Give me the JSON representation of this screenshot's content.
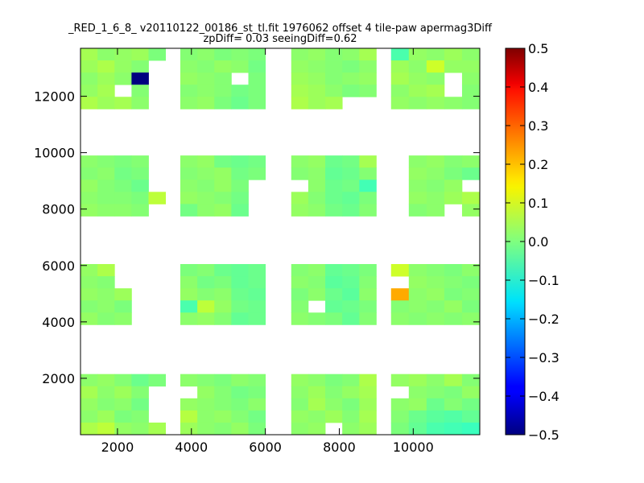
{
  "chart_data": {
    "type": "heatmap",
    "title_lines": [
      "_RED_1_6_8_ v20110122_00186_st_tl.fit 1976062 offset 4 tile-paw apermag3Diff",
      "zpDiff= 0.03 seeingDiff=0.62"
    ],
    "xlim": [
      1000,
      11800
    ],
    "ylim": [
      0,
      13700
    ],
    "cell_width": 510,
    "cell_height": 430,
    "x_ticks": [
      2000,
      4000,
      6000,
      8000,
      10000
    ],
    "x_tick_labels": [
      "2000",
      "4000",
      "6000",
      "8000",
      "10000"
    ],
    "y_ticks": [
      2000,
      4000,
      6000,
      8000,
      10000,
      12000
    ],
    "y_tick_labels": [
      "2000",
      "4000",
      "6000",
      "8000",
      "10000",
      "12000"
    ],
    "colorbar": {
      "colormap": "jet",
      "range": [
        -0.5,
        0.5
      ],
      "ticks": [
        0.5,
        0.4,
        0.3,
        0.2,
        0.1,
        0.0,
        -0.1,
        -0.2,
        -0.3,
        -0.4,
        -0.5
      ],
      "tick_labels": [
        "0.5",
        "0.4",
        "0.3",
        "0.2",
        "0.1",
        "0.0",
        "−0.1",
        "−0.2",
        "−0.3",
        "−0.4",
        "−0.5"
      ]
    },
    "tiles": [
      {
        "x": [
          1000,
          3300
        ],
        "y": [
          0,
          2150
        ],
        "rows": [
          [
            0.02,
            0.03,
            0.01,
            -0.02,
            0.0
          ],
          [
            0.05,
            0.02,
            0.04,
            0.01,
            null
          ],
          [
            0.03,
            0.01,
            0.02,
            -0.01,
            null
          ],
          [
            0.02,
            0.04,
            0.0,
            0.01,
            null
          ],
          [
            0.06,
            0.08,
            0.03,
            0.02,
            0.05
          ]
        ]
      },
      {
        "x": [
          3700,
          6000
        ],
        "y": [
          0,
          2150
        ],
        "rows": [
          [
            0.02,
            0.01,
            0.0,
            0.02,
            0.01
          ],
          [
            null,
            0.03,
            0.01,
            -0.01,
            0.0
          ],
          [
            0.03,
            0.02,
            0.01,
            0.0,
            0.02
          ],
          [
            0.07,
            0.02,
            0.03,
            0.01,
            -0.01
          ],
          [
            0.04,
            0.02,
            0.01,
            0.03,
            0.0
          ]
        ]
      },
      {
        "x": [
          6700,
          9000
        ],
        "y": [
          0,
          2150
        ],
        "rows": [
          [
            0.03,
            0.02,
            0.0,
            0.01,
            0.06
          ],
          [
            0.02,
            0.04,
            0.01,
            0.03,
            0.05
          ],
          [
            0.01,
            0.05,
            0.02,
            0.0,
            0.04
          ],
          [
            0.03,
            0.02,
            0.04,
            0.01,
            0.05
          ],
          [
            0.02,
            0.03,
            null,
            0.02,
            0.04
          ]
        ]
      },
      {
        "x": [
          9400,
          11800
        ],
        "y": [
          0,
          2150
        ],
        "rows": [
          [
            0.03,
            0.04,
            0.02,
            0.05,
            0.01
          ],
          [
            null,
            0.02,
            0.01,
            0.0,
            0.03
          ],
          [
            0.02,
            0.03,
            -0.02,
            0.01,
            -0.01
          ],
          [
            0.01,
            -0.02,
            -0.04,
            -0.05,
            -0.03
          ],
          [
            0.0,
            -0.03,
            -0.06,
            -0.07,
            -0.08
          ]
        ]
      },
      {
        "x": [
          1000,
          3300
        ],
        "y": [
          3900,
          6050
        ],
        "rows": [
          [
            0.03,
            0.06,
            null,
            null,
            null
          ],
          [
            0.02,
            0.01,
            null,
            null,
            null
          ],
          [
            0.03,
            0.02,
            0.04,
            null,
            null
          ],
          [
            0.01,
            0.02,
            0.0,
            null,
            null
          ],
          [
            0.03,
            0.01,
            0.02,
            null,
            null
          ]
        ]
      },
      {
        "x": [
          3700,
          6000
        ],
        "y": [
          3900,
          6050
        ],
        "rows": [
          [
            0.0,
            0.01,
            -0.02,
            -0.03,
            -0.02
          ],
          [
            0.02,
            -0.01,
            0.0,
            -0.03,
            -0.02
          ],
          [
            0.03,
            0.01,
            0.02,
            -0.02,
            -0.03
          ],
          [
            -0.06,
            0.08,
            0.03,
            -0.01,
            -0.02
          ],
          [
            0.02,
            0.03,
            0.01,
            -0.03,
            -0.02
          ]
        ]
      },
      {
        "x": [
          6700,
          9000
        ],
        "y": [
          3900,
          6050
        ],
        "rows": [
          [
            0.01,
            0.02,
            -0.03,
            -0.02,
            0.0
          ],
          [
            0.02,
            0.01,
            -0.04,
            -0.03,
            0.01
          ],
          [
            0.0,
            0.02,
            -0.02,
            -0.04,
            0.02
          ],
          [
            0.01,
            null,
            -0.03,
            -0.02,
            0.0
          ],
          [
            0.02,
            0.01,
            0.0,
            -0.03,
            0.01
          ]
        ]
      },
      {
        "x": [
          9400,
          11800
        ],
        "y": [
          3900,
          6050
        ],
        "rows": [
          [
            0.1,
            0.02,
            0.01,
            0.0,
            0.02
          ],
          [
            null,
            0.03,
            0.02,
            0.01,
            0.0
          ],
          [
            0.23,
            0.02,
            0.03,
            0.0,
            0.01
          ],
          [
            0.01,
            0.02,
            0.01,
            0.03,
            0.0
          ],
          [
            0.02,
            0.01,
            0.02,
            0.01,
            0.02
          ]
        ]
      },
      {
        "x": [
          1000,
          3300
        ],
        "y": [
          7750,
          9900
        ],
        "rows": [
          [
            0.02,
            0.01,
            0.0,
            0.01,
            null
          ],
          [
            0.01,
            0.02,
            -0.01,
            0.0,
            null
          ],
          [
            0.03,
            0.01,
            0.0,
            -0.02,
            null
          ],
          [
            0.02,
            0.01,
            0.01,
            0.0,
            0.08
          ],
          [
            0.03,
            0.02,
            0.02,
            0.01,
            null
          ]
        ]
      },
      {
        "x": [
          3700,
          6000
        ],
        "y": [
          7750,
          9900
        ],
        "rows": [
          [
            0.02,
            0.03,
            -0.01,
            -0.02,
            -0.01
          ],
          [
            0.01,
            0.02,
            0.03,
            -0.01,
            0.0
          ],
          [
            0.02,
            0.01,
            0.03,
            0.0,
            null
          ],
          [
            0.03,
            0.02,
            0.01,
            -0.01,
            null
          ],
          [
            -0.01,
            0.02,
            0.03,
            -0.02,
            null
          ]
        ]
      },
      {
        "x": [
          6700,
          9000
        ],
        "y": [
          7750,
          9900
        ],
        "rows": [
          [
            0.02,
            0.03,
            -0.02,
            -0.01,
            0.05
          ],
          [
            0.01,
            0.02,
            -0.03,
            -0.02,
            0.01
          ],
          [
            null,
            0.02,
            -0.02,
            -0.01,
            -0.07
          ],
          [
            0.04,
            0.01,
            -0.02,
            -0.03,
            0.0
          ],
          [
            0.03,
            0.02,
            -0.01,
            -0.02,
            0.01
          ]
        ]
      },
      {
        "x": [
          9400,
          11800
        ],
        "y": [
          7750,
          9900
        ],
        "rows": [
          [
            null,
            0.02,
            0.03,
            0.01,
            0.02
          ],
          [
            null,
            0.03,
            0.02,
            0.0,
            -0.02
          ],
          [
            null,
            0.02,
            0.01,
            0.03,
            null
          ],
          [
            null,
            0.03,
            0.02,
            0.04,
            0.06
          ],
          [
            null,
            0.01,
            0.02,
            null,
            0.03
          ]
        ]
      },
      {
        "x": [
          1000,
          3300
        ],
        "y": [
          11550,
          13700
        ],
        "rows": [
          [
            0.05,
            0.02,
            0.03,
            0.04,
            0.0
          ],
          [
            0.04,
            0.06,
            0.03,
            0.01,
            null
          ],
          [
            0.02,
            0.04,
            0.02,
            -0.5,
            null
          ],
          [
            0.03,
            0.05,
            null,
            0.01,
            null
          ],
          [
            0.06,
            0.04,
            0.05,
            0.02,
            null
          ]
        ]
      },
      {
        "x": [
          3700,
          6000
        ],
        "y": [
          11550,
          13700
        ],
        "rows": [
          [
            0.01,
            0.02,
            0.0,
            0.01,
            0.0
          ],
          [
            0.02,
            0.01,
            0.03,
            0.02,
            -0.01
          ],
          [
            0.03,
            0.02,
            0.01,
            null,
            0.0
          ],
          [
            0.01,
            0.02,
            0.01,
            -0.01,
            0.0
          ],
          [
            0.02,
            0.03,
            0.0,
            -0.02,
            0.0
          ]
        ]
      },
      {
        "x": [
          6700,
          9000
        ],
        "y": [
          11550,
          13700
        ],
        "rows": [
          [
            0.02,
            0.03,
            0.01,
            0.02,
            0.05
          ],
          [
            0.03,
            0.02,
            0.01,
            0.0,
            0.02
          ],
          [
            0.04,
            0.03,
            0.01,
            0.02,
            0.03
          ],
          [
            0.05,
            0.04,
            0.02,
            0.0,
            0.01
          ],
          [
            0.06,
            0.04,
            0.05,
            null,
            null
          ]
        ]
      },
      {
        "x": [
          9400,
          11800
        ],
        "y": [
          11550,
          13700
        ],
        "rows": [
          [
            -0.06,
            0.03,
            0.02,
            0.04,
            0.02
          ],
          [
            0.04,
            0.02,
            0.1,
            0.03,
            0.03
          ],
          [
            0.05,
            0.03,
            0.02,
            null,
            0.02
          ],
          [
            0.02,
            0.04,
            0.05,
            null,
            0.01
          ],
          [
            0.03,
            0.02,
            0.03,
            0.02,
            0.01
          ]
        ]
      }
    ]
  }
}
